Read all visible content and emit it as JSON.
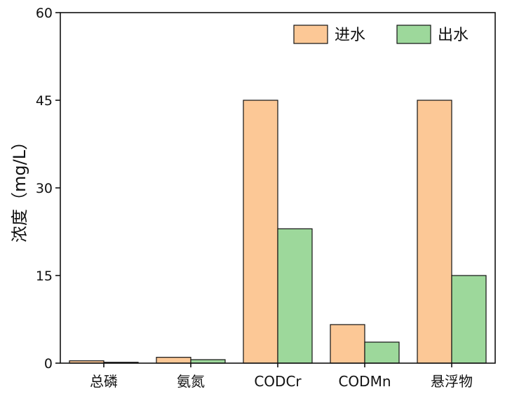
{
  "chart_data": {
    "type": "bar",
    "title": "",
    "xlabel": "",
    "ylabel": "浓度（mg/L）",
    "ylim": [
      0,
      60
    ],
    "yticks": [
      0,
      15,
      30,
      45,
      60
    ],
    "grid": false,
    "legend_position": "top-right",
    "categories": [
      "总磷",
      "氨氮",
      "CODCr",
      "CODMn",
      "悬浮物"
    ],
    "series": [
      {
        "name": "进水",
        "color": "#FCC896",
        "values": [
          0.4,
          1.0,
          45,
          6.6,
          45
        ]
      },
      {
        "name": "出水",
        "color": "#9DD89B",
        "values": [
          0.15,
          0.6,
          23,
          3.6,
          15
        ]
      }
    ]
  }
}
